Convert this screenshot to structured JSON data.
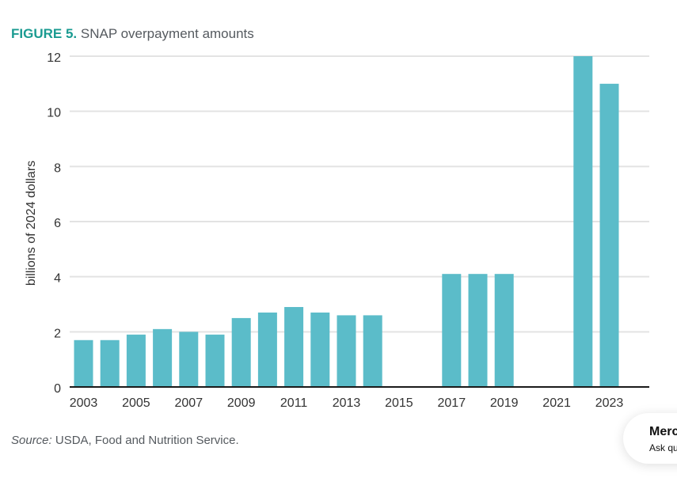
{
  "chart_data": {
    "type": "bar",
    "title_prefix": "FIGURE 5.",
    "title": "SNAP overpayment amounts",
    "xlabel": "",
    "ylabel": "billions of 2024 dollars",
    "ylim": [
      0,
      12
    ],
    "yticks": [
      0,
      2,
      4,
      6,
      8,
      10,
      12
    ],
    "grid": true,
    "categories": [
      "2003",
      "2004",
      "2005",
      "2006",
      "2007",
      "2008",
      "2009",
      "2010",
      "2011",
      "2012",
      "2013",
      "2014",
      "2015",
      "2016",
      "2017",
      "2018",
      "2019",
      "2020",
      "2021",
      "2022",
      "2023"
    ],
    "xtick_labels": [
      "2003",
      "2005",
      "2007",
      "2009",
      "2011",
      "2013",
      "2015",
      "2017",
      "2019",
      "2021",
      "2023"
    ],
    "values": [
      1.7,
      1.7,
      1.9,
      2.1,
      2.0,
      1.9,
      2.5,
      2.7,
      2.9,
      2.7,
      2.6,
      2.6,
      null,
      null,
      4.1,
      4.1,
      4.1,
      null,
      null,
      12.0,
      11.0
    ],
    "bar_color": "#5bbcc9",
    "source_label": "Source:",
    "source_text": " USDA, Food and Nutrition Service."
  },
  "colors": {
    "title_accent": "#1a9b91",
    "text": "#555a5f",
    "bar": "#5bbcc9"
  },
  "chat_widget": {
    "title": "Merc",
    "subtitle": "Ask qu"
  }
}
